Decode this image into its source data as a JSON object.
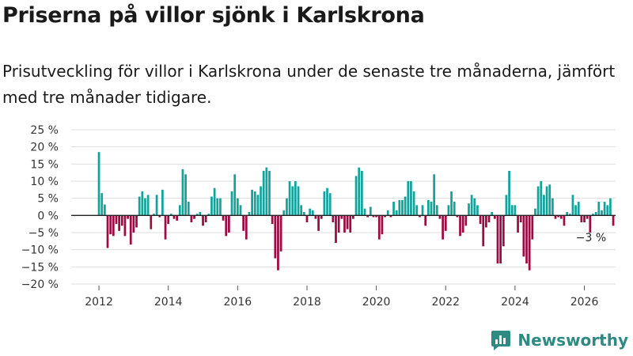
{
  "title": "Priserna på villor sjönk i Karlskrona",
  "subtitle": "Prisutveckling för villor i Karlskrona under de senaste tre månaderna, jämfört med tre månader tidigare.",
  "brand": {
    "name": "Newsworthy",
    "color": "#2e8a82"
  },
  "colors": {
    "positive": "#14a39a",
    "negative": "#9a0c43",
    "grid": "#dddddd",
    "axis": "#222222"
  },
  "chart_data": {
    "type": "bar",
    "title": "",
    "xlabel": "",
    "ylabel": "",
    "ylim": [
      -20,
      25
    ],
    "xlim": [
      2011.2,
      2026.9
    ],
    "y_ticks": [
      25,
      20,
      15,
      10,
      5,
      0,
      -5,
      -10,
      -15,
      -20
    ],
    "y_tick_labels": [
      "25 %",
      "20 %",
      "15 %",
      "10 %",
      "5 %",
      "0 %",
      "−5 %",
      "−10 %",
      "−15 %",
      "−20 %"
    ],
    "x_ticks": [
      2012,
      2014,
      2016,
      2018,
      2020,
      2022,
      2024,
      2026
    ],
    "x_tick_labels": [
      "2012",
      "2014",
      "2016",
      "2018",
      "2020",
      "2022",
      "2024",
      "2026"
    ],
    "annotation": {
      "text": "−3 %",
      "x": 2026.1,
      "y": -3
    },
    "x_start": 2012.0,
    "x_step": 0.08333,
    "values": [
      18.5,
      6.5,
      3.2,
      -9.5,
      -5.5,
      -6.0,
      -2.5,
      -4.5,
      -3.0,
      -6.0,
      -1.0,
      -8.5,
      -5.0,
      -3.5,
      5.5,
      7.0,
      5.0,
      6.0,
      -4.0,
      0.5,
      6.0,
      -0.5,
      7.5,
      -7.0,
      -2.5,
      0.5,
      -1.0,
      -1.5,
      3.0,
      13.5,
      12.0,
      4.0,
      -2.0,
      -1.0,
      0.5,
      1.0,
      -3.0,
      -2.0,
      0.5,
      5.5,
      8.0,
      5.0,
      5.0,
      -1.5,
      -6.0,
      -5.0,
      7.0,
      12.0,
      5.0,
      3.0,
      -4.5,
      -7.0,
      1.0,
      7.5,
      7.0,
      6.0,
      8.5,
      13.0,
      14.0,
      13.0,
      -2.5,
      -12.5,
      -16.0,
      -10.5,
      1.5,
      5.0,
      10.0,
      8.5,
      10.0,
      8.5,
      3.0,
      1.0,
      -2.0,
      2.0,
      1.5,
      -1.0,
      -4.5,
      -1.0,
      7.0,
      8.0,
      6.5,
      -2.0,
      -8.0,
      -5.0,
      -1.0,
      -5.0,
      -4.0,
      -5.0,
      -1.0,
      11.5,
      14.0,
      13.0,
      2.0,
      -0.5,
      2.5,
      -0.5,
      -0.5,
      -7.0,
      -5.5,
      -0.5,
      1.5,
      -0.5,
      4.0,
      1.5,
      4.5,
      4.5,
      5.5,
      10.0,
      10.0,
      7.0,
      3.0,
      -0.5,
      3.0,
      -3.0,
      4.5,
      4.0,
      12.0,
      3.0,
      -1.0,
      -7.0,
      -4.5,
      3.0,
      7.0,
      4.0,
      -0.5,
      -6.0,
      -5.0,
      -3.0,
      3.5,
      6.0,
      5.0,
      3.0,
      -2.5,
      -9.0,
      -3.5,
      -2.0,
      1.0,
      -1.0,
      -14.0,
      -14.0,
      -9.0,
      6.0,
      13.0,
      3.0,
      3.0,
      -5.0,
      -2.0,
      -12.0,
      -14.0,
      -16.0,
      -7.0,
      2.0,
      8.5,
      10.0,
      6.0,
      8.5,
      9.0,
      5.0,
      -1.0,
      -0.5,
      -1.0,
      -3.0,
      1.0,
      0.5,
      6.0,
      3.0,
      4.0,
      -2.0,
      -2.0,
      -1.0,
      -5.0,
      0.5,
      1.0,
      4.0,
      1.5,
      4.0,
      3.0,
      5.0,
      -3.0
    ]
  }
}
